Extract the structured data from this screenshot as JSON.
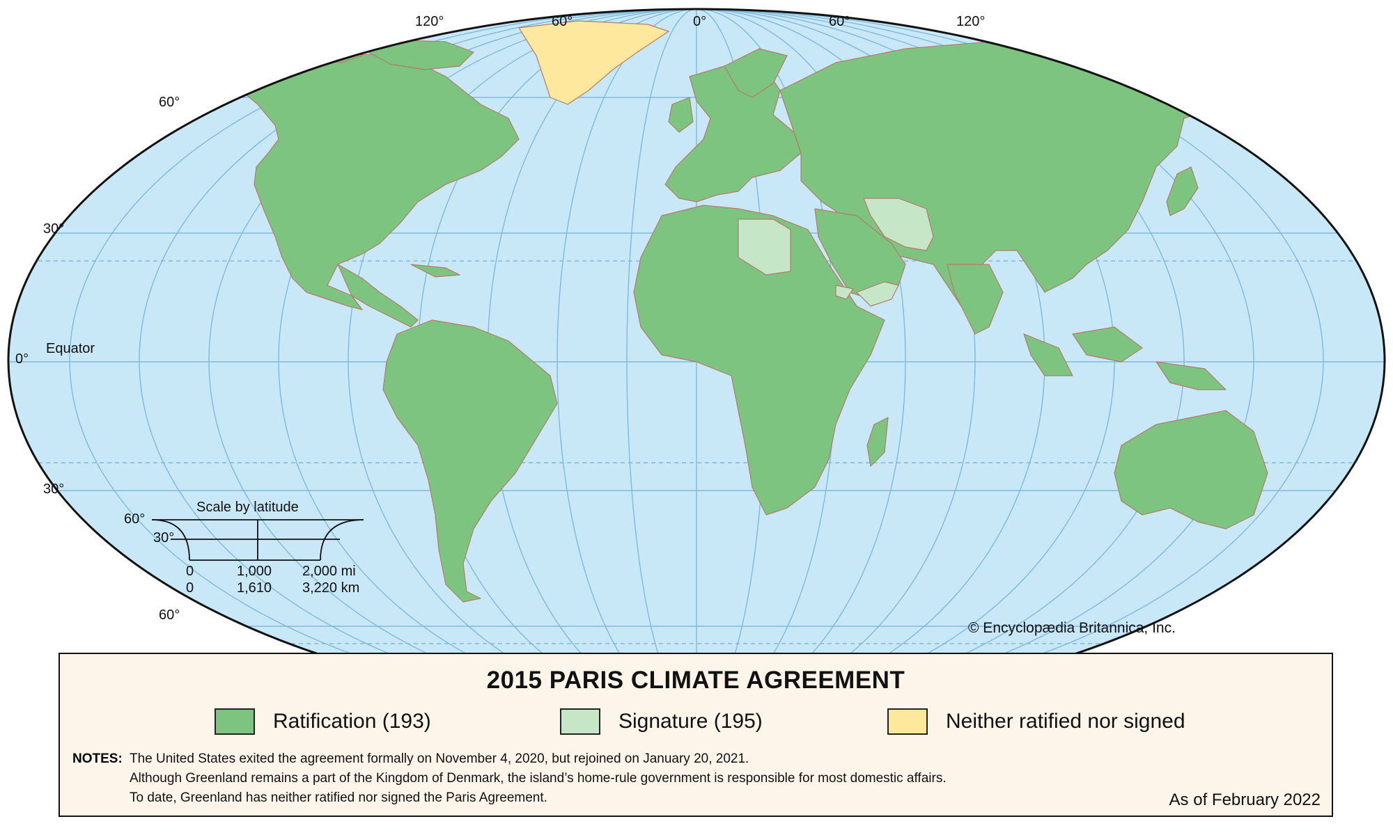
{
  "title": "2015 PARIS CLIMATE AGREEMENT",
  "colors": {
    "ocean": "#c8e8f8",
    "ratification": "#7cc47f",
    "signature": "#c6e6c8",
    "neither": "#fde89e",
    "border": "#b87a6a",
    "graticule": "#7fb9d9",
    "outline": "#111111"
  },
  "graticule_labels": {
    "lon_w120": "120°",
    "lon_w60": "60°",
    "lon_0": "0°",
    "lon_e60": "60°",
    "lon_e120": "120°",
    "lat_n60": "60°",
    "lat_n30": "30°",
    "lat_0": "0°",
    "equator": "Equator",
    "lat_s30": "30°",
    "lat_s60": "60°"
  },
  "scale": {
    "title": "Scale by latitude",
    "lat60": "60°",
    "lat30": "30°",
    "mi_0": "0",
    "mi_mid": "1,000",
    "mi_max": "2,000 mi",
    "km_0": "0",
    "km_mid": "1,610",
    "km_max": "3,220 km"
  },
  "copyright": "© Encyclopædia Britannica, Inc.",
  "legend": {
    "items": [
      {
        "label": "Ratification (193)",
        "color": "#7cc47f"
      },
      {
        "label": "Signature (195)",
        "color": "#c6e6c8"
      },
      {
        "label": "Neither ratified nor signed",
        "color": "#fde89e"
      }
    ]
  },
  "notes": {
    "label": "NOTES:",
    "lines": [
      "The United States exited the agreement formally on November 4, 2020, but rejoined on January 20, 2021.",
      "Although Greenland remains a part of the Kingdom of Denmark, the island’s home-rule government is responsible for most domestic affairs.",
      "To date, Greenland has neither ratified nor signed the Paris Agreement."
    ]
  },
  "as_of": "As of February 2022"
}
